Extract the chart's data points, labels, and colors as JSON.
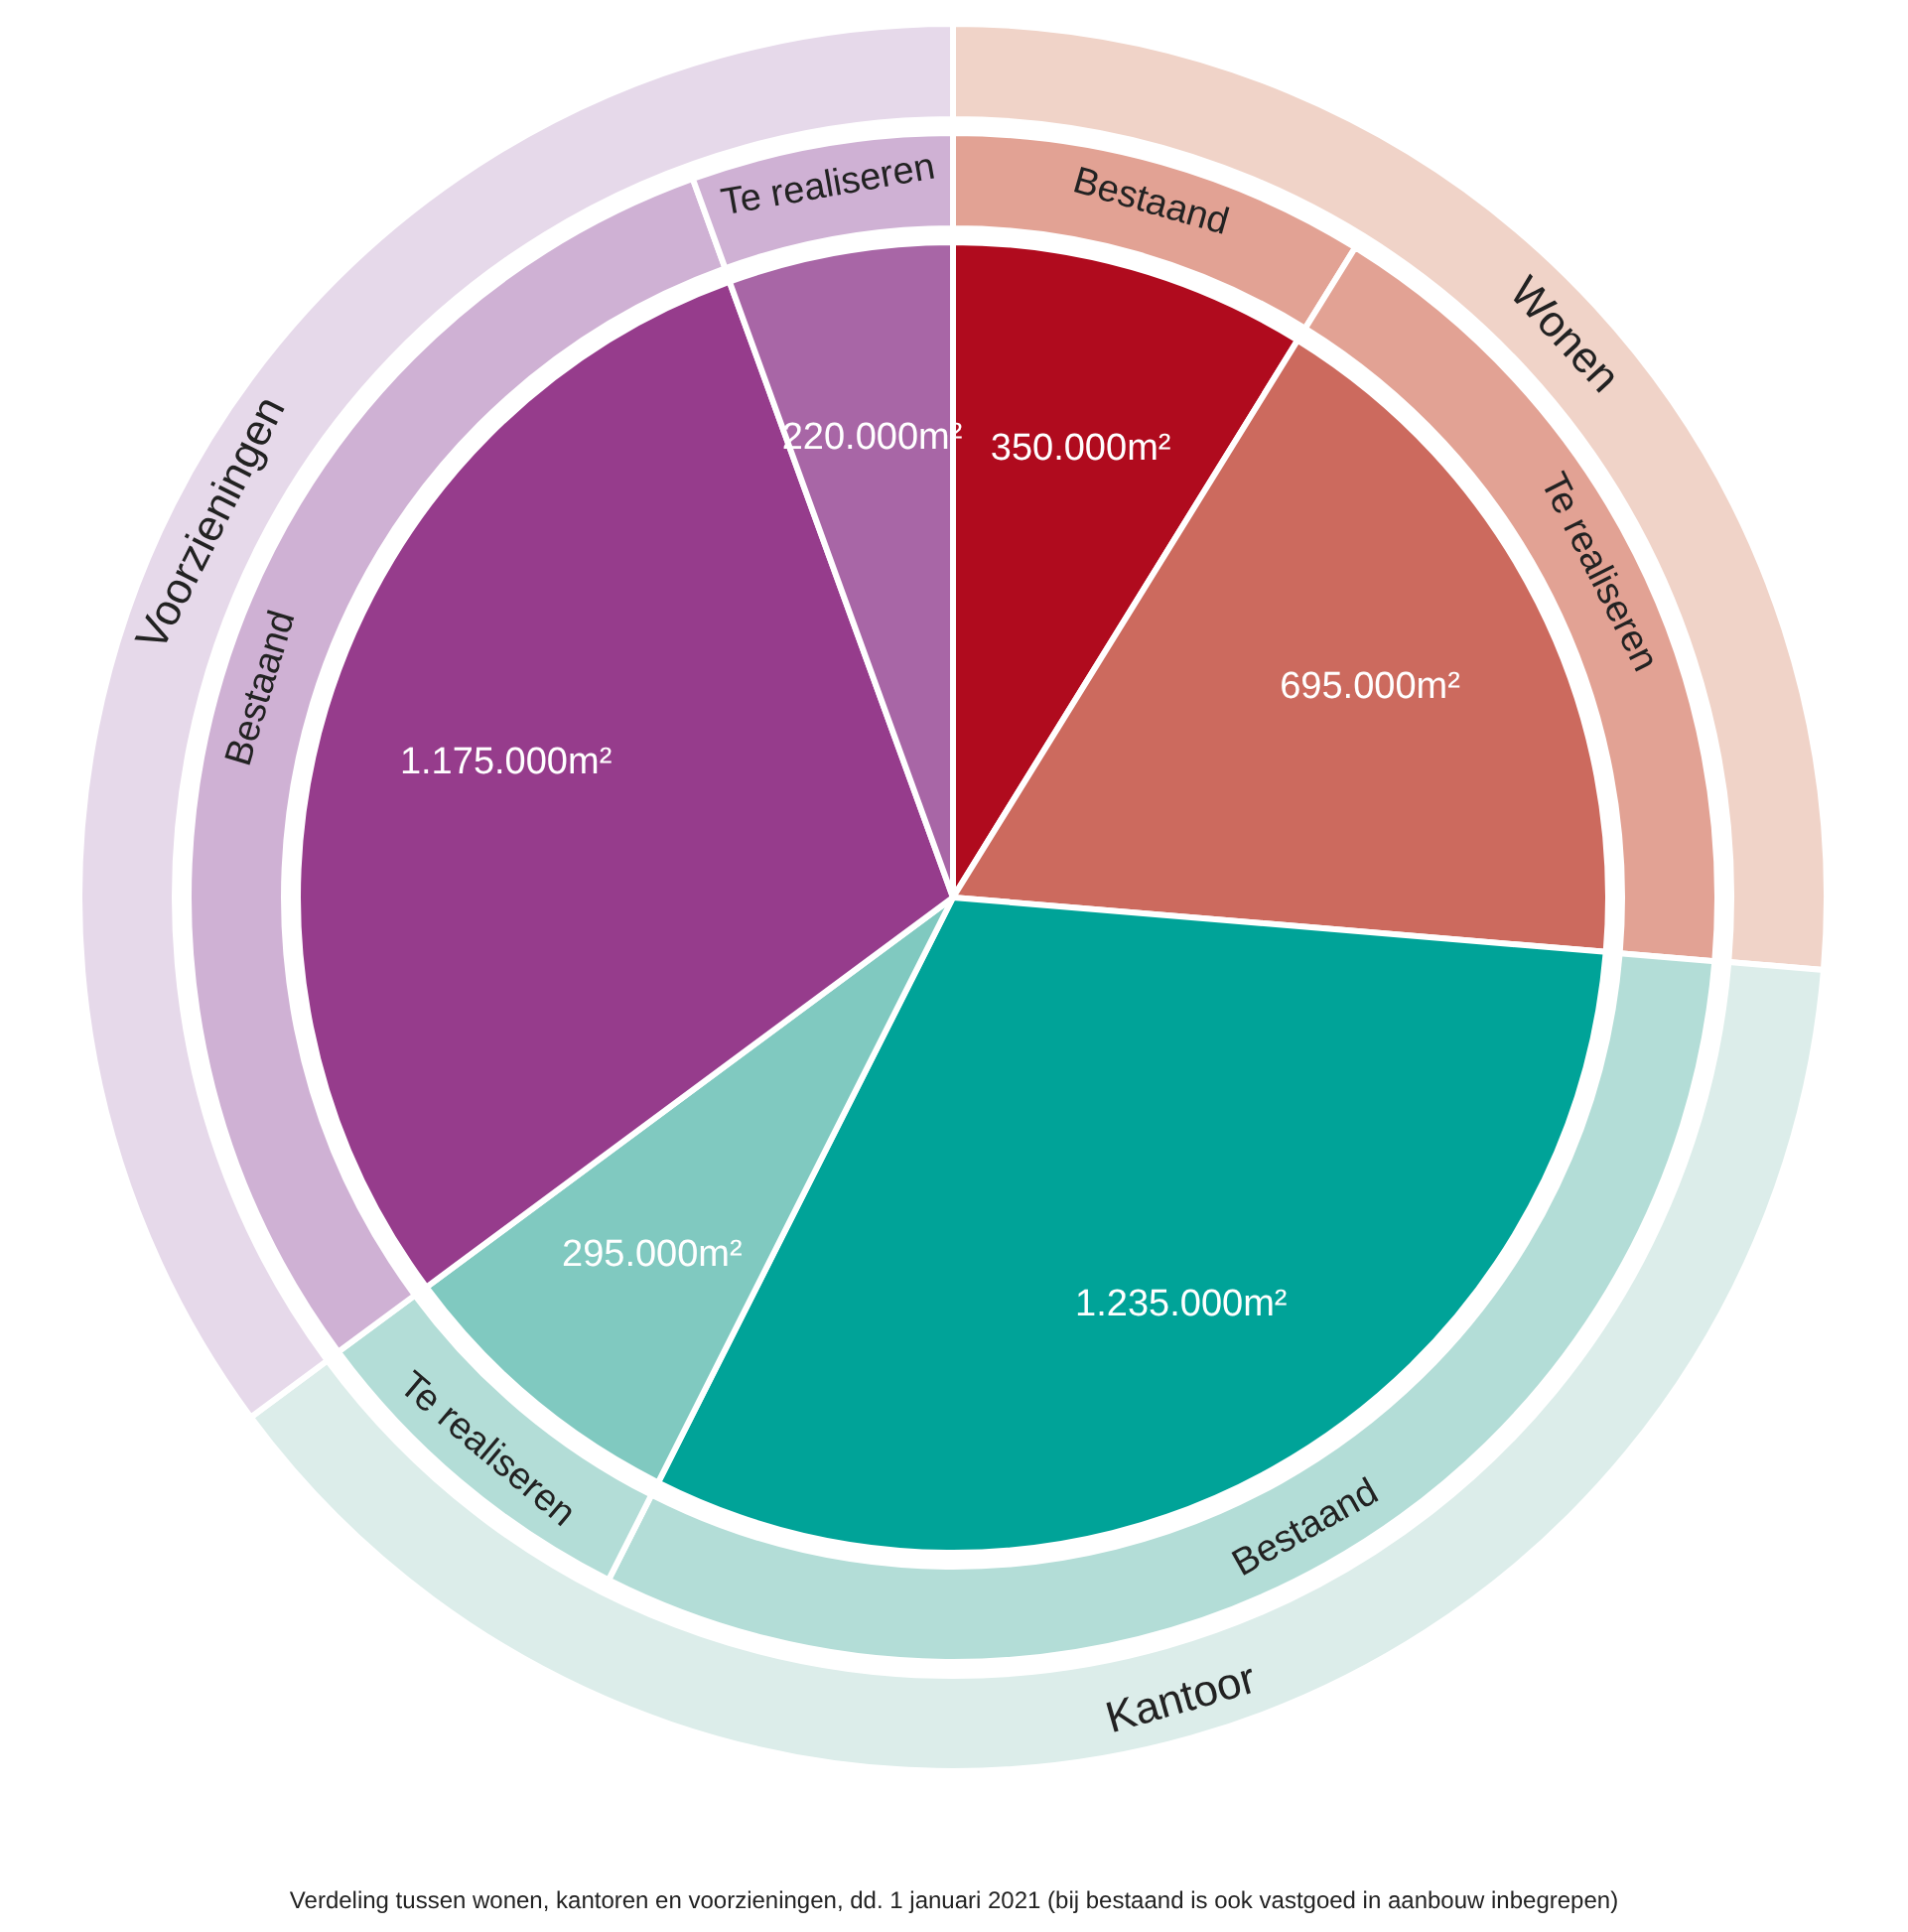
{
  "chart_data": [
    {
      "type": "donut",
      "categories": [
        "Wonen",
        "Kantoor",
        "Voorzieningen"
      ],
      "values": [
        26.32,
        38.54,
        35.14
      ],
      "colors": [
        "#f0d3c8",
        "#dcedea",
        "#e6d9ea"
      ],
      "annotations": [
        "Verdeling tussen wonen, kantoren en voorzieningen, dd. 1 januari 2021 (bij bestaand is ook vastgoed in aanbouw inbegrepen)"
      ]
    },
    {
      "type": "donut",
      "categories": [
        "Bestaand",
        "Te realiseren",
        "Bestaand",
        "Te realiseren",
        "Bestaand",
        "Te realiseren"
      ],
      "values": [
        8.82,
        17.51,
        31.11,
        7.43,
        29.6,
        5.53
      ],
      "colors": [
        "#e2a294",
        "#e2a294",
        "#b3ddd7",
        "#b3ddd7",
        "#cfb1d4",
        "#cfb1d4"
      ]
    },
    {
      "type": "pie",
      "categories": [
        null,
        null,
        null,
        null,
        null,
        null
      ],
      "values": [
        350000,
        695000,
        1235000,
        295000,
        1175000,
        220000
      ],
      "colors": [
        "#b00b1e",
        "#cc6a5e",
        "#00a398",
        "#80c9c0",
        "#963c8c",
        "#a866a6"
      ],
      "value_labels": [
        "350.000m²",
        "695.000m²",
        "1.235.000m²",
        "295.000m²",
        "1.175.000m²",
        "220.000m²"
      ]
    }
  ]
}
